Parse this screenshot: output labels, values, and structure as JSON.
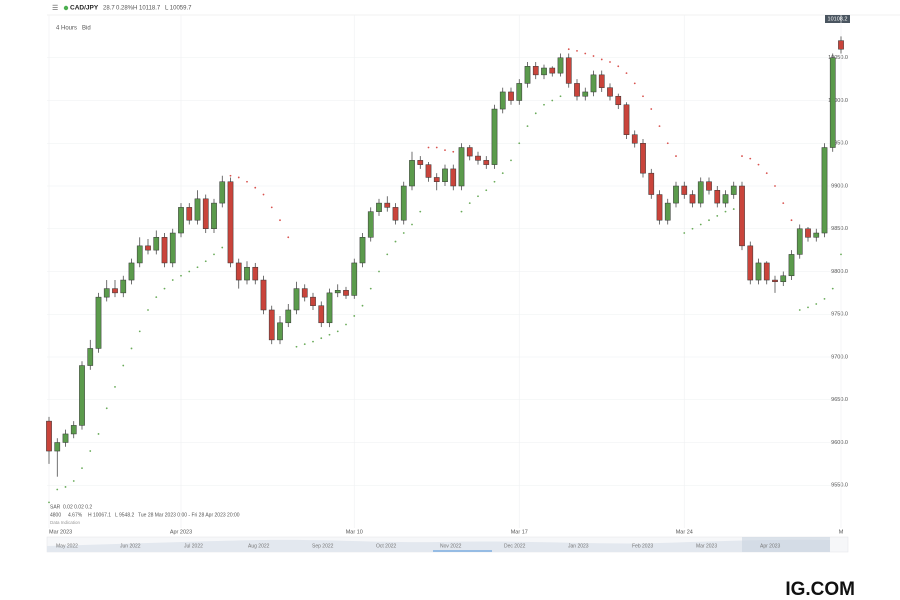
{
  "header": {
    "symbol": "CAD/JPY",
    "change": "28.7",
    "change_pct": "0.28%",
    "high": "H 10118.7",
    "low": "L 10059.7",
    "interval": "4 Hours",
    "price_type": "Bid",
    "last_price": "10108.2"
  },
  "chart_data": {
    "type": "candlestick",
    "categories": [
      "Mar 2023",
      null,
      null,
      null,
      null,
      null,
      null,
      null,
      null,
      null,
      null,
      null,
      null,
      null,
      null,
      null,
      "Apr 2023",
      null,
      null,
      null,
      null,
      null,
      null,
      null,
      null,
      null,
      null,
      null,
      null,
      null,
      null,
      null,
      null,
      null,
      null,
      null,
      null,
      "Mar 10",
      null,
      null,
      null,
      null,
      null,
      null,
      null,
      null,
      null,
      null,
      null,
      null,
      null,
      null,
      null,
      null,
      null,
      null,
      null,
      "Mar 17",
      null,
      null,
      null,
      null,
      null,
      null,
      null,
      null,
      null,
      null,
      null,
      null,
      null,
      null,
      null,
      null,
      null,
      null,
      null,
      "Mar 24",
      null,
      null,
      null,
      null,
      null,
      null,
      null,
      null,
      null,
      null,
      null,
      null,
      null,
      null,
      null,
      null,
      null,
      null,
      "M"
    ],
    "open": [
      9625,
      9590,
      9600,
      9610,
      9620,
      9690,
      9710,
      9770,
      9780,
      9775,
      9790,
      9810,
      9830,
      9825,
      9840,
      9810,
      9845,
      9875,
      9860,
      9885,
      9850,
      9880,
      9905,
      9810,
      9790,
      9805,
      9790,
      9755,
      9720,
      9740,
      9755,
      9780,
      9770,
      9760,
      9740,
      9775,
      9778,
      9772,
      9810,
      9840,
      9870,
      9880,
      9875,
      9860,
      9900,
      9930,
      9925,
      9910,
      9905,
      9920,
      9900,
      9945,
      9935,
      9930,
      9925,
      9990,
      10010,
      10000,
      10020,
      10040,
      10030,
      10038,
      10032,
      10050,
      10020,
      10005,
      10010,
      10030,
      10015,
      10005,
      9995,
      9960,
      9950,
      9915,
      9890,
      9860,
      9880,
      9900,
      9890,
      9880,
      9905,
      9895,
      9880,
      9890,
      9900,
      9830,
      9790,
      9810,
      9790,
      9788,
      9795,
      9820,
      9850,
      9840,
      9845,
      9945,
      10070
    ],
    "high": [
      9630,
      9605,
      9615,
      9625,
      9695,
      9720,
      9775,
      9790,
      9790,
      9795,
      9815,
      9840,
      9838,
      9848,
      9845,
      9850,
      9880,
      9880,
      9895,
      9890,
      9885,
      9912,
      9910,
      9815,
      9812,
      9810,
      9795,
      9760,
      9748,
      9762,
      9788,
      9785,
      9775,
      9765,
      9780,
      9785,
      9782,
      9815,
      9845,
      9875,
      9885,
      9888,
      9880,
      9905,
      9940,
      9935,
      9928,
      9915,
      9925,
      9925,
      9950,
      9948,
      9940,
      9935,
      9995,
      10015,
      10015,
      10025,
      10045,
      10045,
      10042,
      10040,
      10055,
      10055,
      10025,
      10015,
      10035,
      10035,
      10020,
      10008,
      9998,
      9965,
      9955,
      9920,
      9895,
      9885,
      9905,
      9905,
      9895,
      9910,
      9910,
      9900,
      9895,
      9905,
      9905,
      9835,
      9815,
      9812,
      9795,
      9800,
      9825,
      9855,
      9852,
      9850,
      9950,
      10055,
      10075
    ],
    "low": [
      9575,
      9560,
      9595,
      9605,
      9615,
      9685,
      9705,
      9765,
      9770,
      9770,
      9785,
      9805,
      9820,
      9820,
      9805,
      9805,
      9840,
      9855,
      9855,
      9845,
      9845,
      9875,
      9805,
      9780,
      9785,
      9785,
      9750,
      9715,
      9715,
      9735,
      9750,
      9765,
      9755,
      9735,
      9735,
      9770,
      9768,
      9768,
      9805,
      9835,
      9865,
      9870,
      9855,
      9855,
      9895,
      9920,
      9905,
      9895,
      9900,
      9895,
      9895,
      9930,
      9925,
      9920,
      9920,
      9985,
      9995,
      9995,
      10015,
      10025,
      10025,
      10028,
      10028,
      10015,
      10000,
      10000,
      10005,
      10010,
      10000,
      9990,
      9955,
      9945,
      9910,
      9885,
      9855,
      9855,
      9875,
      9885,
      9875,
      9875,
      9890,
      9875,
      9875,
      9885,
      9825,
      9785,
      9785,
      9785,
      9775,
      9783,
      9790,
      9815,
      9835,
      9835,
      9840,
      9940,
      10055
    ],
    "close": [
      9590,
      9600,
      9610,
      9620,
      9690,
      9710,
      9770,
      9780,
      9775,
      9790,
      9810,
      9830,
      9825,
      9840,
      9810,
      9845,
      9875,
      9860,
      9885,
      9850,
      9880,
      9905,
      9810,
      9790,
      9805,
      9790,
      9755,
      9720,
      9740,
      9755,
      9780,
      9770,
      9760,
      9740,
      9775,
      9778,
      9772,
      9810,
      9840,
      9870,
      9880,
      9875,
      9860,
      9900,
      9930,
      9925,
      9910,
      9905,
      9920,
      9900,
      9945,
      9935,
      9930,
      9925,
      9990,
      10010,
      10000,
      10020,
      10040,
      10030,
      10038,
      10032,
      10050,
      10020,
      10005,
      10010,
      10030,
      10015,
      10005,
      9995,
      9960,
      9950,
      9915,
      9890,
      9860,
      9880,
      9900,
      9890,
      9880,
      9905,
      9895,
      9880,
      9890,
      9900,
      9830,
      9790,
      9810,
      9790,
      9788,
      9795,
      9820,
      9850,
      9840,
      9845,
      9945,
      10050,
      10060
    ],
    "up_color": "#5b9b4c",
    "down_color": "#c9443b",
    "sar": {
      "name": "SAR",
      "params": "0.02  0.02  0.2",
      "above_color": "#d9534f",
      "below_color": "#6aab5a",
      "values": [
        9530,
        9545,
        9548,
        9555,
        9570,
        9590,
        9610,
        9640,
        9665,
        9690,
        9710,
        9730,
        9755,
        9770,
        9780,
        9790,
        9795,
        9800,
        9805,
        9812,
        9820,
        9828,
        9912,
        9910,
        9905,
        9898,
        9890,
        9875,
        9860,
        9840,
        9712,
        9715,
        9718,
        9722,
        9726,
        9730,
        9738,
        9748,
        9760,
        9780,
        9800,
        9820,
        9835,
        9845,
        9855,
        9870,
        9945,
        9945,
        9942,
        9940,
        9870,
        9880,
        9888,
        9895,
        9905,
        9915,
        9930,
        9950,
        9970,
        9985,
        9995,
        10000,
        10005,
        10060,
        10058,
        10055,
        10052,
        10048,
        10045,
        10040,
        10032,
        10020,
        10005,
        9990,
        9970,
        9950,
        9935,
        9845,
        9850,
        9855,
        9860,
        9865,
        9870,
        9873,
        9935,
        9932,
        9925,
        9915,
        9900,
        9880,
        9860,
        9755,
        9758,
        9762,
        9768,
        9780,
        9820
      ]
    },
    "ylim": [
      9500,
      10100
    ],
    "yticks": [
      {
        "value": 9550,
        "label": "9550.0"
      },
      {
        "value": 9600,
        "label": "9600.0"
      },
      {
        "value": 9650,
        "label": "9650.0"
      },
      {
        "value": 9700,
        "label": "9700.0"
      },
      {
        "value": 9750,
        "label": "9750.0"
      },
      {
        "value": 9800,
        "label": "9800.0"
      },
      {
        "value": 9850,
        "label": "9850.0"
      },
      {
        "value": 9900,
        "label": "9900.0"
      },
      {
        "value": 9950,
        "label": "9950.0"
      },
      {
        "value": 10000,
        "label": "10000.0"
      },
      {
        "value": 10050,
        "label": "10050.0"
      }
    ],
    "grid": true
  },
  "footer": {
    "volume": "4800",
    "volume_pct": "4.67%",
    "range_high": "H 10067.1",
    "range_low": "L 9548.2",
    "period": "Tue 28 Mar 2023 0:00 - Fri 28 Apr 2023 20:00",
    "note": "Data Indication"
  },
  "navigator": {
    "labels": [
      "May 2022",
      "Jun 2022",
      "Jul 2022",
      "Aug 2022",
      "Sep 2022",
      "Oct 2022",
      "Nov 2022",
      "Dec 2022",
      "Jan 2023",
      "Feb 2023",
      "Mar 2023",
      "Apr 2023"
    ]
  },
  "logo": "IG.COM"
}
